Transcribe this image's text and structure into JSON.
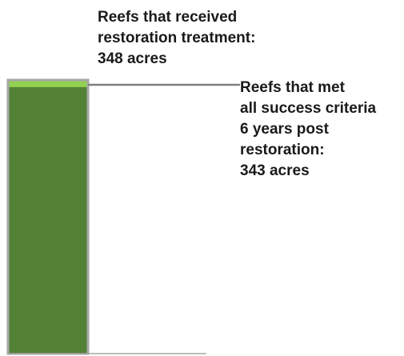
{
  "chart_data": {
    "type": "bar",
    "categories": [
      ""
    ],
    "series": [
      {
        "values": [
          348
        ]
      },
      {
        "values": [
          343
        ]
      }
    ],
    "ylim": [
      0,
      348
    ],
    "grid": false,
    "annotations": [
      "Reefs that received\nrestoration treatment:\n348 acres",
      "Reefs that met\nall success criteria\n6 years post\nrestoration:\n343 acres"
    ],
    "colors": {
      "treated": "#92d050",
      "met_criteria": "#538135",
      "outline": "#a6a6a6",
      "leader": "#7f7f7f"
    }
  }
}
